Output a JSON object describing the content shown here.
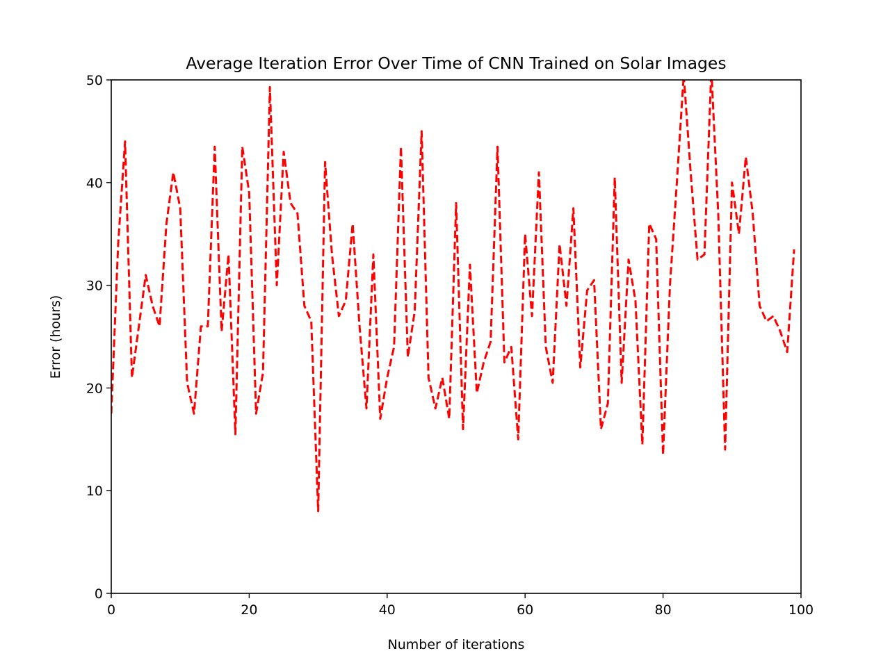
{
  "chart_data": {
    "type": "line",
    "title": "Average Iteration Error Over Time of CNN Trained on Solar Images",
    "xlabel": "Number of iterations",
    "ylabel": "Error (hours)",
    "xlim": [
      0,
      100
    ],
    "ylim": [
      0,
      50
    ],
    "xticks": [
      0,
      20,
      40,
      60,
      80,
      100
    ],
    "xtick_labels": [
      "0",
      "20",
      "40",
      "60",
      "80",
      "100"
    ],
    "yticks": [
      0,
      10,
      20,
      30,
      40,
      50
    ],
    "ytick_labels": [
      "0",
      "10",
      "20",
      "30",
      "40",
      "50"
    ],
    "grid": false,
    "series": [
      {
        "name": "error",
        "color": "#ff0000",
        "linestyle": "dashed",
        "x": [
          0,
          1,
          2,
          3,
          4,
          5,
          6,
          7,
          8,
          9,
          10,
          11,
          12,
          13,
          14,
          15,
          16,
          17,
          18,
          19,
          20,
          21,
          22,
          23,
          24,
          25,
          26,
          27,
          28,
          29,
          30,
          31,
          32,
          33,
          34,
          35,
          36,
          37,
          38,
          39,
          40,
          41,
          42,
          43,
          44,
          45,
          46,
          47,
          48,
          49,
          50,
          51,
          52,
          53,
          54,
          55,
          56,
          57,
          58,
          59,
          60,
          61,
          62,
          63,
          64,
          65,
          66,
          67,
          68,
          69,
          70,
          71,
          72,
          73,
          74,
          75,
          76,
          77,
          78,
          79,
          80,
          81,
          82,
          83,
          84,
          85,
          86,
          87,
          88,
          89,
          90,
          91,
          92,
          93,
          94,
          95,
          96,
          97,
          98,
          99
        ],
        "values": [
          17.5,
          34,
          44,
          21,
          26,
          31,
          28,
          26,
          36,
          41,
          37.5,
          20.5,
          17.5,
          26,
          26,
          43.5,
          25.5,
          33,
          15.5,
          43.5,
          39,
          17.5,
          21.5,
          49.3,
          30,
          43,
          38,
          37,
          28,
          26.5,
          8,
          42,
          33,
          27,
          28.5,
          36,
          26,
          18,
          33,
          17,
          21,
          24,
          43.5,
          23,
          27.5,
          45,
          21,
          18,
          21,
          17,
          38,
          16,
          32,
          19.5,
          22.5,
          24.5,
          43.5,
          22.5,
          24,
          15,
          35,
          27,
          41,
          24,
          20.5,
          34,
          28,
          37.5,
          22,
          29.5,
          30.5,
          16,
          18.5,
          40.5,
          20.5,
          32.5,
          28.5,
          14.5,
          36,
          34.5,
          13.5,
          30,
          40,
          50.5,
          41,
          32.5,
          33,
          51,
          37,
          14,
          40,
          35,
          42.5,
          37,
          28,
          26.5,
          27,
          25.5,
          23.5,
          33.5
        ]
      }
    ]
  }
}
